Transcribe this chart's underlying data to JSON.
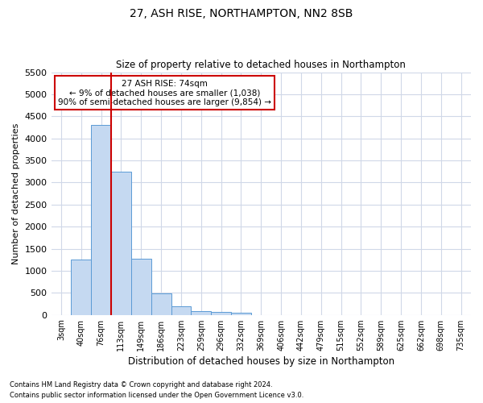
{
  "title1": "27, ASH RISE, NORTHAMPTON, NN2 8SB",
  "title2": "Size of property relative to detached houses in Northampton",
  "xlabel": "Distribution of detached houses by size in Northampton",
  "ylabel": "Number of detached properties",
  "footer1": "Contains HM Land Registry data © Crown copyright and database right 2024.",
  "footer2": "Contains public sector information licensed under the Open Government Licence v3.0.",
  "annotation_title": "27 ASH RISE: 74sqm",
  "annotation_line1": "← 9% of detached houses are smaller (1,038)",
  "annotation_line2": "90% of semi-detached houses are larger (9,854) →",
  "bar_color": "#c5d9f1",
  "bar_edge_color": "#5b9bd5",
  "vline_color": "#cc0000",
  "annotation_box_color": "#cc0000",
  "grid_color": "#d0d8e8",
  "categories": [
    "3sqm",
    "40sqm",
    "76sqm",
    "113sqm",
    "149sqm",
    "186sqm",
    "223sqm",
    "259sqm",
    "296sqm",
    "332sqm",
    "369sqm",
    "406sqm",
    "442sqm",
    "479sqm",
    "515sqm",
    "552sqm",
    "589sqm",
    "625sqm",
    "662sqm",
    "698sqm",
    "735sqm"
  ],
  "bar_values": [
    0,
    1250,
    4300,
    3250,
    1280,
    480,
    200,
    90,
    60,
    50,
    0,
    0,
    0,
    0,
    0,
    0,
    0,
    0,
    0,
    0,
    0
  ],
  "ylim": [
    0,
    5500
  ],
  "yticks": [
    0,
    500,
    1000,
    1500,
    2000,
    2500,
    3000,
    3500,
    4000,
    4500,
    5000,
    5500
  ],
  "vline_x": 2.5
}
